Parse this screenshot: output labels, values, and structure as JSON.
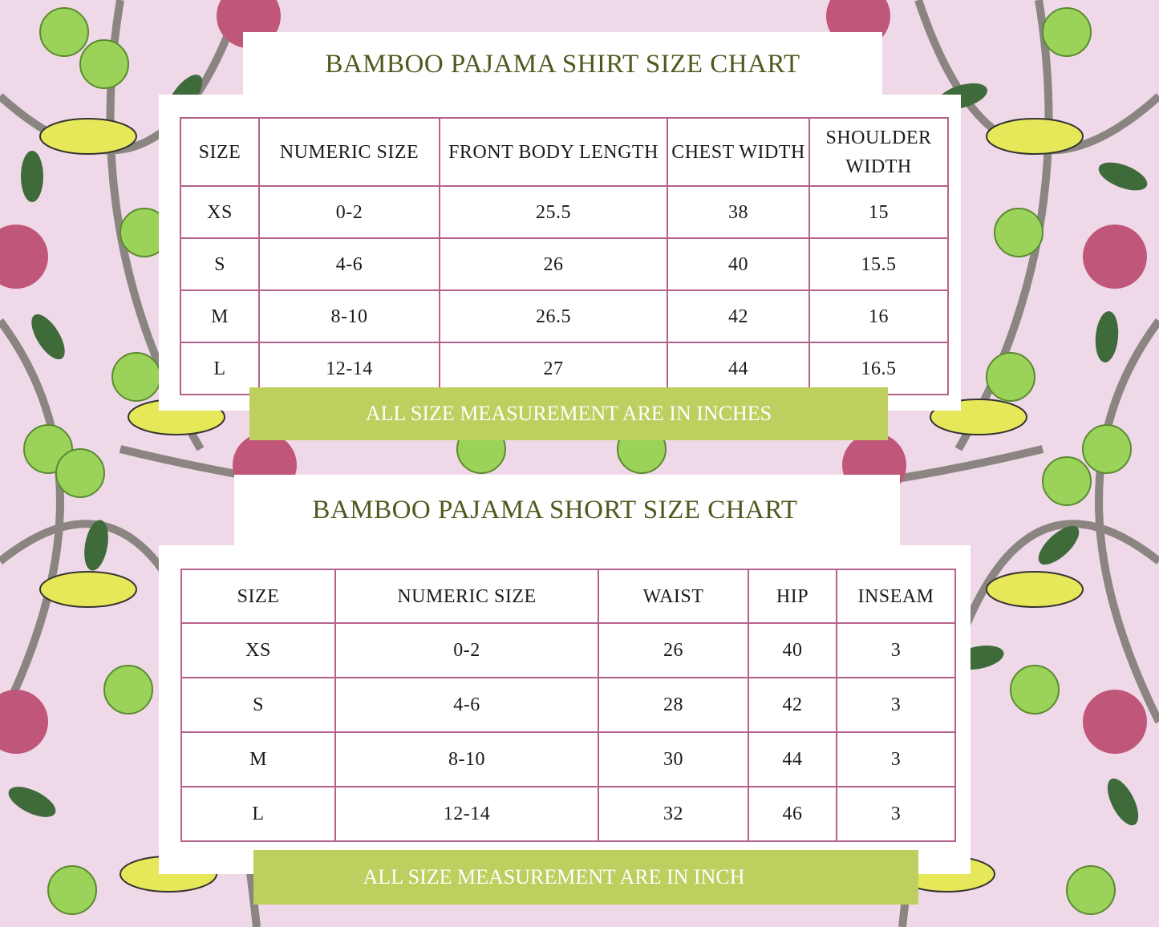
{
  "colors": {
    "background": "#efd9e8",
    "title": "#4d5a1e",
    "border": "#b5628a",
    "banner": "#bccf5f",
    "leaf": "#3f6b3a",
    "fruit": "#9bd35a",
    "flower": "#c0567a",
    "branch": "#8a8580",
    "bird": "#e6e85a"
  },
  "shirt": {
    "title": "BAMBOO PAJAMA SHIRT SIZE CHART",
    "headers": [
      "SIZE",
      "NUMERIC SIZE",
      "FRONT BODY LENGTH",
      "CHEST WIDTH",
      "SHOULDER WIDTH"
    ],
    "rows": [
      [
        "XS",
        "0-2",
        "25.5",
        "38",
        "15"
      ],
      [
        "S",
        "4-6",
        "26",
        "40",
        "15.5"
      ],
      [
        "M",
        "8-10",
        "26.5",
        "42",
        "16"
      ],
      [
        "L",
        "12-14",
        "27",
        "44",
        "16.5"
      ]
    ],
    "note": "ALL SIZE MEASUREMENT ARE IN INCHES"
  },
  "shorts": {
    "title": "BAMBOO PAJAMA SHORT SIZE CHART",
    "headers": [
      "SIZE",
      "NUMERIC SIZE",
      "WAIST",
      "HIP",
      "INSEAM"
    ],
    "rows": [
      [
        "XS",
        "0-2",
        "26",
        "40",
        "3"
      ],
      [
        "S",
        "4-6",
        "28",
        "42",
        "3"
      ],
      [
        "M",
        "8-10",
        "30",
        "44",
        "3"
      ],
      [
        "L",
        "12-14",
        "32",
        "46",
        "3"
      ]
    ],
    "note": "ALL SIZE MEASUREMENT ARE IN INCH"
  }
}
